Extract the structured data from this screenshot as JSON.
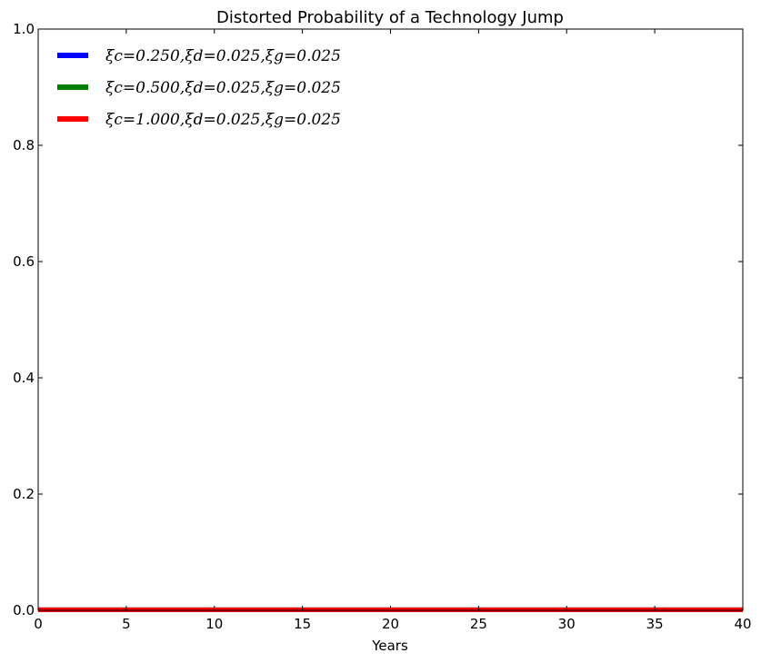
{
  "chart_data": {
    "type": "line",
    "title": "Distorted Probability of a Technology Jump",
    "xlabel": "Years",
    "ylabel": "",
    "xlim": [
      0,
      40
    ],
    "ylim": [
      0,
      1.0
    ],
    "x_ticks": [
      "0",
      "5",
      "10",
      "15",
      "20",
      "25",
      "30",
      "35",
      "40"
    ],
    "y_ticks": [
      "0.0",
      "0.2",
      "0.4",
      "0.6",
      "0.8",
      "1.0"
    ],
    "grid": false,
    "legend_position": "top-left",
    "x": [
      0,
      5,
      10,
      15,
      20,
      25,
      30,
      35,
      40
    ],
    "series": [
      {
        "name": "ξc=0.250,ξd=0.025,ξg=0.025",
        "color": "#0000ff",
        "values": [
          0.001,
          0.001,
          0.001,
          0.001,
          0.001,
          0.001,
          0.001,
          0.001,
          0.001
        ]
      },
      {
        "name": "ξc=0.500,ξd=0.025,ξg=0.025",
        "color": "#008000",
        "values": [
          0.001,
          0.001,
          0.001,
          0.001,
          0.001,
          0.001,
          0.001,
          0.001,
          0.001
        ]
      },
      {
        "name": "ξc=1.000,ξd=0.025,ξg=0.025",
        "color": "#ff0000",
        "values": [
          0.001,
          0.001,
          0.001,
          0.001,
          0.001,
          0.001,
          0.001,
          0.001,
          0.001
        ]
      }
    ]
  }
}
